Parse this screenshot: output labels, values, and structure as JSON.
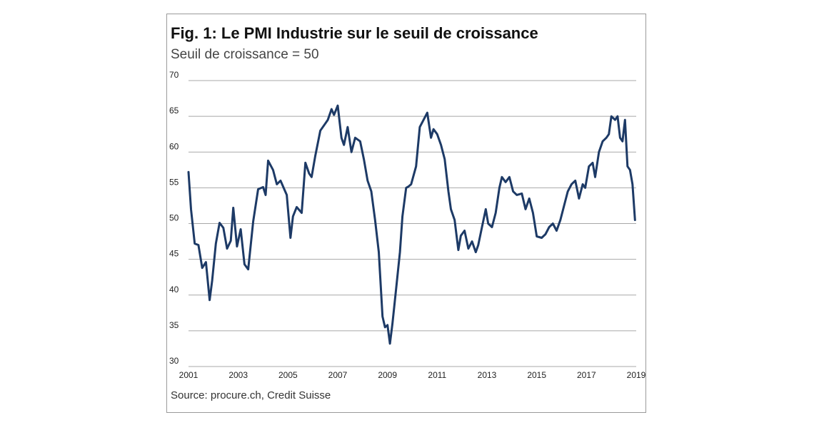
{
  "chart_data": {
    "type": "line",
    "title": "Fig. 1: Le PMI Industrie sur le seuil de croissance",
    "subtitle": "Seuil de croissance = 50",
    "source": "Source: procure.ch, Credit Suisse",
    "xlabel": "",
    "ylabel": "",
    "xlim": [
      2001,
      2019
    ],
    "ylim": [
      30,
      70
    ],
    "x_ticks": [
      "2001",
      "2003",
      "2005",
      "2007",
      "2009",
      "2011",
      "2013",
      "2015",
      "2017",
      "2019"
    ],
    "y_ticks": [
      "30",
      "35",
      "40",
      "45",
      "50",
      "55",
      "60",
      "65",
      "70"
    ],
    "grid": true,
    "legend": "none",
    "colors": {
      "series": "#1d3a66",
      "grid": "#a8a8a8"
    },
    "series": [
      {
        "x": [
          2001.0,
          2001.1,
          2001.25,
          2001.4,
          2001.55,
          2001.7,
          2001.85,
          2001.95,
          2002.1,
          2002.25,
          2002.4,
          2002.55,
          2002.7,
          2002.8,
          2002.95,
          2003.1,
          2003.25,
          2003.4,
          2003.6,
          2003.8,
          2004.0,
          2004.1,
          2004.2,
          2004.4,
          2004.55,
          2004.7,
          2004.85,
          2004.95,
          2005.1,
          2005.2,
          2005.35,
          2005.55,
          2005.7,
          2005.85,
          2005.95,
          2006.1,
          2006.3,
          2006.5,
          2006.6,
          2006.75,
          2006.85,
          2007.0,
          2007.15,
          2007.25,
          2007.4,
          2007.55,
          2007.7,
          2007.9,
          2008.05,
          2008.2,
          2008.35,
          2008.5,
          2008.65,
          2008.8,
          2008.9,
          2009.0,
          2009.1,
          2009.2,
          2009.35,
          2009.5,
          2009.6,
          2009.75,
          2009.85,
          2009.95,
          2010.15,
          2010.3,
          2010.45,
          2010.6,
          2010.75,
          2010.85,
          2011.0,
          2011.15,
          2011.3,
          2011.45,
          2011.55,
          2011.7,
          2011.85,
          2011.95,
          2012.1,
          2012.25,
          2012.4,
          2012.55,
          2012.65,
          2012.8,
          2012.95,
          2013.05,
          2013.2,
          2013.35,
          2013.5,
          2013.6,
          2013.75,
          2013.9,
          2014.05,
          2014.2,
          2014.4,
          2014.55,
          2014.7,
          2014.85,
          2015.0,
          2015.2,
          2015.35,
          2015.5,
          2015.65,
          2015.8,
          2015.95,
          2016.1,
          2016.25,
          2016.4,
          2016.55,
          2016.7,
          2016.85,
          2016.95,
          2017.1,
          2017.25,
          2017.35,
          2017.5,
          2017.65,
          2017.8,
          2017.9,
          2018.0,
          2018.15,
          2018.25,
          2018.35,
          2018.45,
          2018.55,
          2018.65,
          2018.75,
          2018.85,
          2018.95
        ],
        "y": [
          57.2,
          52.0,
          47.2,
          47.0,
          43.8,
          44.6,
          39.3,
          42.0,
          47.2,
          50.1,
          49.4,
          46.5,
          47.6,
          52.2,
          46.8,
          49.2,
          44.3,
          43.6,
          50.3,
          54.8,
          55.1,
          54.0,
          58.8,
          57.5,
          55.5,
          56.0,
          54.8,
          54.0,
          48.0,
          51.0,
          52.3,
          51.5,
          58.5,
          57.0,
          56.5,
          59.5,
          63.0,
          64.0,
          64.5,
          66.0,
          65.2,
          66.5,
          62.0,
          61.0,
          63.5,
          60.0,
          62.0,
          61.5,
          59.0,
          56.0,
          54.5,
          50.5,
          46.0,
          37.0,
          35.5,
          35.8,
          33.2,
          36.0,
          41.0,
          46.0,
          51.0,
          55.0,
          55.2,
          55.5,
          58.0,
          63.5,
          64.5,
          65.5,
          62.0,
          63.2,
          62.5,
          61.0,
          59.0,
          54.5,
          52.0,
          50.5,
          46.3,
          48.3,
          49.0,
          46.5,
          47.5,
          46.0,
          47.0,
          49.5,
          52.0,
          50.0,
          49.5,
          51.5,
          55.0,
          56.5,
          55.8,
          56.5,
          54.5,
          54.0,
          54.2,
          52.0,
          53.5,
          51.5,
          48.2,
          48.0,
          48.5,
          49.5,
          50.0,
          49.0,
          50.5,
          52.5,
          54.5,
          55.5,
          56.0,
          53.5,
          55.5,
          55.0,
          58.0,
          58.5,
          56.5,
          60.0,
          61.5,
          62.0,
          62.5,
          65.0,
          64.5,
          65.0,
          62.0,
          61.5,
          64.5,
          58.0,
          57.5,
          55.5,
          50.5
        ]
      }
    ]
  }
}
